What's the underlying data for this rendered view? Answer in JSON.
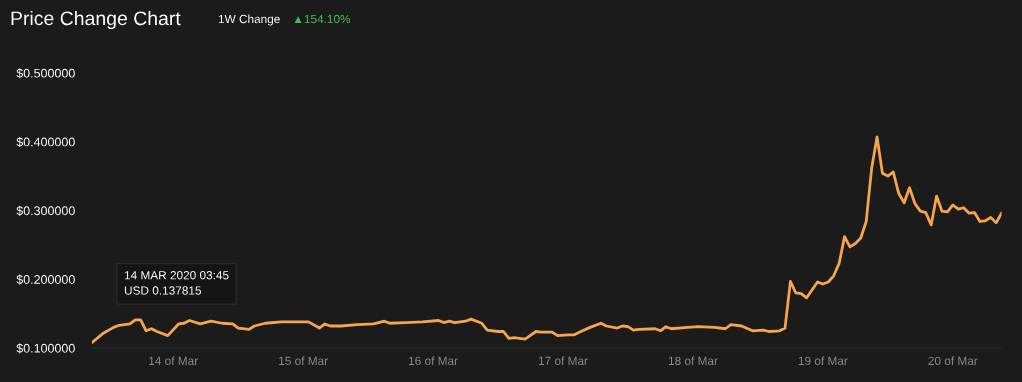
{
  "chart_data": {
    "type": "line",
    "title": "Price Change Chart",
    "annotations": [
      "1W Change",
      "▲154.10%",
      {
        "text": "14 MAR 2020 03:45\nUSD 0.137815",
        "x": "2020-03-14T03:45",
        "y": 0.137815
      }
    ],
    "x": [
      "2020-03-13T09:00",
      "2020-03-13T11:00",
      "2020-03-13T13:00",
      "2020-03-13T14:00",
      "2020-03-13T16:00",
      "2020-03-13T17:00",
      "2020-03-13T18:00",
      "2020-03-13T19:00",
      "2020-03-13T20:00",
      "2020-03-13T21:00",
      "2020-03-13T23:00",
      "2020-03-14T01:00",
      "2020-03-14T02:00",
      "2020-03-14T03:00",
      "2020-03-14T05:00",
      "2020-03-14T07:00",
      "2020-03-14T09:00",
      "2020-03-14T11:00",
      "2020-03-14T12:00",
      "2020-03-14T14:00",
      "2020-03-14T15:00",
      "2020-03-14T17:00",
      "2020-03-14T20:00",
      "2020-03-14T23:00",
      "2020-03-15T01:00",
      "2020-03-15T03:00",
      "2020-03-15T04:00",
      "2020-03-15T05:00",
      "2020-03-15T07:00",
      "2020-03-15T10:00",
      "2020-03-15T13:00",
      "2020-03-15T15:00",
      "2020-03-15T16:00",
      "2020-03-15T19:00",
      "2020-03-15T22:00",
      "2020-03-16T01:00",
      "2020-03-16T02:00",
      "2020-03-16T03:00",
      "2020-03-16T04:00",
      "2020-03-16T06:00",
      "2020-03-16T07:00",
      "2020-03-16T09:00",
      "2020-03-16T10:00",
      "2020-03-16T12:00",
      "2020-03-16T13:00",
      "2020-03-16T14:00",
      "2020-03-16T15:00",
      "2020-03-16T17:00",
      "2020-03-16T19:00",
      "2020-03-16T20:00",
      "2020-03-16T22:00",
      "2020-03-16T23:00",
      "2020-03-17T01:00",
      "2020-03-17T02:00",
      "2020-03-17T03:00",
      "2020-03-17T05:00",
      "2020-03-17T07:00",
      "2020-03-17T08:00",
      "2020-03-17T10:00",
      "2020-03-17T11:00",
      "2020-03-17T12:00",
      "2020-03-17T13:00",
      "2020-03-17T14:00",
      "2020-03-17T17:00",
      "2020-03-17T18:00",
      "2020-03-17T19:00",
      "2020-03-17T20:00",
      "2020-03-17T23:00",
      "2020-03-18T01:00",
      "2020-03-18T04:00",
      "2020-03-18T06:00",
      "2020-03-18T07:00",
      "2020-03-18T09:00",
      "2020-03-18T11:00",
      "2020-03-18T13:00",
      "2020-03-18T14:00",
      "2020-03-18T16:00",
      "2020-03-18T17:00",
      "2020-03-18T18:00",
      "2020-03-18T19:00",
      "2020-03-18T20:00",
      "2020-03-18T21:00",
      "2020-03-18T23:00",
      "2020-03-19T00:00",
      "2020-03-19T01:00",
      "2020-03-19T02:00",
      "2020-03-19T03:00",
      "2020-03-19T04:00",
      "2020-03-19T05:00",
      "2020-03-19T06:00",
      "2020-03-19T07:00",
      "2020-03-19T08:00",
      "2020-03-19T09:00",
      "2020-03-19T10:00",
      "2020-03-19T11:00",
      "2020-03-19T12:00",
      "2020-03-19T13:00",
      "2020-03-19T14:00",
      "2020-03-19T15:00",
      "2020-03-19T16:00",
      "2020-03-19T17:00",
      "2020-03-19T18:00",
      "2020-03-19T19:00",
      "2020-03-19T20:00",
      "2020-03-19T21:00",
      "2020-03-19T22:00",
      "2020-03-19T23:00",
      "2020-03-20T00:00",
      "2020-03-20T01:00",
      "2020-03-20T02:00",
      "2020-03-20T03:00",
      "2020-03-20T04:00",
      "2020-03-20T05:00",
      "2020-03-20T06:00",
      "2020-03-20T07:00",
      "2020-03-20T08:00",
      "2020-03-20T09:00"
    ],
    "series": [
      {
        "color": "#f7a44f",
        "values": [
          0.108,
          0.121,
          0.13,
          0.133,
          0.135,
          0.141,
          0.141,
          0.125,
          0.128,
          0.124,
          0.118,
          0.135,
          0.136,
          0.14,
          0.135,
          0.139,
          0.136,
          0.135,
          0.129,
          0.127,
          0.132,
          0.136,
          0.138,
          0.138,
          0.138,
          0.129,
          0.135,
          0.132,
          0.132,
          0.134,
          0.135,
          0.139,
          0.136,
          0.137,
          0.138,
          0.14,
          0.137,
          0.139,
          0.137,
          0.139,
          0.142,
          0.136,
          0.126,
          0.124,
          0.124,
          0.114,
          0.115,
          0.113,
          0.124,
          0.123,
          0.123,
          0.118,
          0.119,
          0.119,
          0.123,
          0.13,
          0.136,
          0.132,
          0.129,
          0.132,
          0.131,
          0.126,
          0.127,
          0.128,
          0.125,
          0.131,
          0.128,
          0.13,
          0.131,
          0.13,
          0.128,
          0.134,
          0.132,
          0.125,
          0.126,
          0.124,
          0.125,
          0.129,
          0.197,
          0.18,
          0.179,
          0.173,
          0.196,
          0.193,
          0.196,
          0.205,
          0.223,
          0.262,
          0.247,
          0.252,
          0.26,
          0.284,
          0.361,
          0.407,
          0.354,
          0.35,
          0.356,
          0.325,
          0.311,
          0.333,
          0.31,
          0.299,
          0.297,
          0.279,
          0.321,
          0.299,
          0.298,
          0.308,
          0.302,
          0.304,
          0.296,
          0.297,
          0.284,
          0.285,
          0.29,
          0.282,
          0.296
        ]
      }
    ],
    "xticks": [
      {
        "value": "2020-03-14",
        "label": "14 of Mar"
      },
      {
        "value": "2020-03-15",
        "label": "15 of Mar"
      },
      {
        "value": "2020-03-16",
        "label": "16 of Mar"
      },
      {
        "value": "2020-03-17",
        "label": "17 of Mar"
      },
      {
        "value": "2020-03-18",
        "label": "18 of Mar"
      },
      {
        "value": "2020-03-19",
        "label": "19 of Mar"
      },
      {
        "value": "2020-03-20",
        "label": "20 of Mar"
      }
    ],
    "xlim": [
      "2020-03-13T09:00",
      "2020-03-20T09:00"
    ],
    "ylim": [
      0.1,
      0.5
    ],
    "yticks": [
      {
        "value": 0.1,
        "label": "$0.100000"
      },
      {
        "value": 0.2,
        "label": "$0.200000"
      },
      {
        "value": 0.3,
        "label": "$0.300000"
      },
      {
        "value": 0.4,
        "label": "$0.400000"
      },
      {
        "value": 0.5,
        "label": "$0.500000"
      }
    ],
    "grid": false,
    "legend": false,
    "marker": "none",
    "line_style": "solid"
  }
}
